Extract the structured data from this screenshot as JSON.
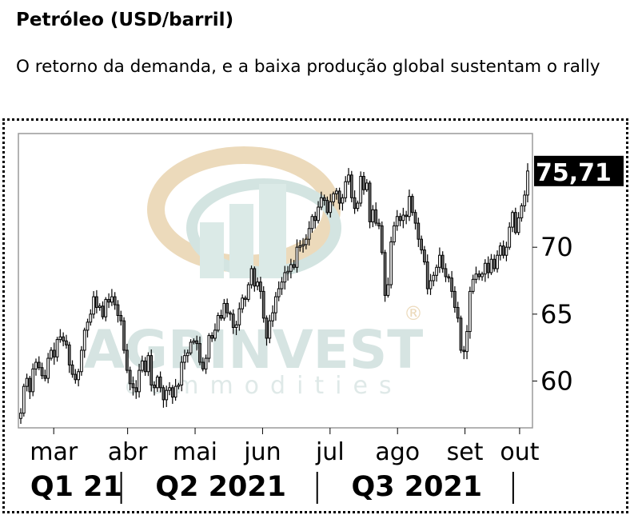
{
  "header": {
    "title": "Petróleo (USD/barril)",
    "subtitle": "O retorno da demanda, e a baixa produção global sustentam o rally"
  },
  "watermark": {
    "brand": "AGRINVEST",
    "sub": "commodities",
    "reg": "®"
  },
  "chart_data": {
    "type": "candlestick",
    "last_value_label": "75,71",
    "ylim": [
      56.5,
      78.5
    ],
    "yticks": [
      60,
      65,
      70
    ],
    "ytick_labels": [
      "60",
      "65",
      "70"
    ],
    "xlim": [
      0,
      160
    ],
    "months": [
      {
        "label": "mar",
        "x": 11
      },
      {
        "label": "abr",
        "x": 34
      },
      {
        "label": "mai",
        "x": 55
      },
      {
        "label": "jun",
        "x": 76
      },
      {
        "label": "jul",
        "x": 97
      },
      {
        "label": "ago",
        "x": 118
      },
      {
        "label": "set",
        "x": 139
      },
      {
        "label": "out",
        "x": 156
      }
    ],
    "quarters": [
      {
        "label": "Q1 21",
        "x": 18
      },
      {
        "label": "Q2 2021",
        "x": 63
      },
      {
        "label": "Q3 2021",
        "x": 124
      }
    ],
    "quarter_separators": [
      32,
      93,
      154
    ],
    "series": [
      {
        "close": [
          57.6,
          59.6,
          60.2,
          59.2,
          60.9,
          61.4,
          61.0,
          60.4,
          60.2,
          61.7,
          62.3,
          61.8,
          63.1,
          63.3,
          63.0,
          62.7,
          61.2,
          60.5,
          60.1,
          60.7,
          62.3,
          63.8,
          64.4,
          65.0,
          66.3,
          65.5,
          65.6,
          64.8,
          66.1,
          65.9,
          66.3,
          65.7,
          64.9,
          64.5,
          62.3,
          60.8,
          59.8,
          59.5,
          59.2,
          60.8,
          61.5,
          60.7,
          61.9,
          59.7,
          59.5,
          60.3,
          59.5,
          58.6,
          59.3,
          59.5,
          58.8,
          59.6,
          59.7,
          61.4,
          61.9,
          62.1,
          62.9,
          63.0,
          62.8,
          61.4,
          60.9,
          61.7,
          63.4,
          63.2,
          63.8,
          64.9,
          64.7,
          65.8,
          65.1,
          65.0,
          64.0,
          64.2,
          65.4,
          66.2,
          66.1,
          67.2,
          68.4,
          67.1,
          67.4,
          66.7,
          64.7,
          63.2,
          64.5,
          65.1,
          66.3,
          66.9,
          67.4,
          68.1,
          68.2,
          68.7,
          68.5,
          70.0,
          70.1,
          70.2,
          70.6,
          71.4,
          72.3,
          72.0,
          73.0,
          73.7,
          73.5,
          72.6,
          73.4,
          74.0,
          74.2,
          73.3,
          73.7,
          74.9,
          75.4,
          73.7,
          72.9,
          73.3,
          75.3,
          74.3,
          74.8,
          71.9,
          72.8,
          71.8,
          71.6,
          69.6,
          66.4,
          67.2,
          70.4,
          71.6,
          72.3,
          72.0,
          72.4,
          72.3,
          73.8,
          72.6,
          71.8,
          70.6,
          69.8,
          68.9,
          66.9,
          67.5,
          67.9,
          68.5,
          69.4,
          68.4,
          67.8,
          67.7,
          66.7,
          65.5,
          64.7,
          62.3,
          62.2,
          63.7,
          66.7,
          67.6,
          68.0,
          67.8,
          68.0,
          68.8,
          68.1,
          69.1,
          68.4,
          69.4,
          70.1,
          69.4,
          70.0,
          71.5,
          72.6,
          71.1,
          72.2,
          73.1,
          73.9,
          75.7
        ]
      }
    ]
  }
}
